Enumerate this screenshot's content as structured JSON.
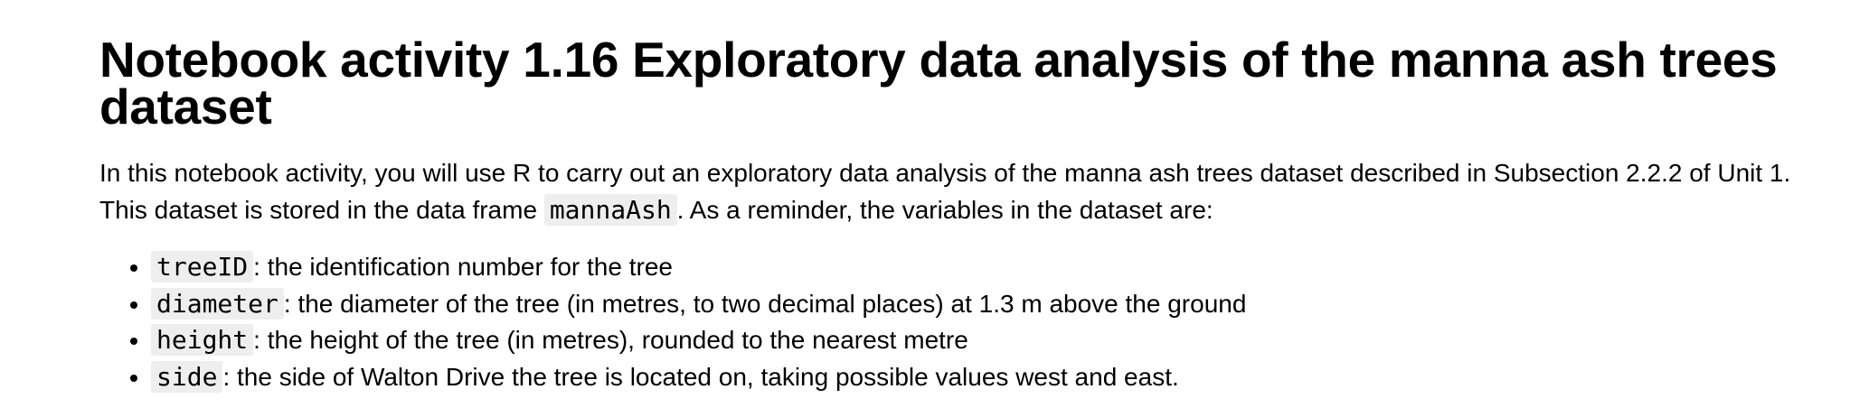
{
  "title": "Notebook activity 1.16 Exploratory data analysis of the manna ash trees dataset",
  "intro": {
    "before_code": "In this notebook activity, you will use R to carry out an exploratory data analysis of the manna ash trees dataset described in Subsection 2.2.2 of Unit 1. This dataset is stored in the data frame ",
    "code": "mannaAsh",
    "after_code": ". As a reminder, the variables in the dataset are:"
  },
  "variables": [
    {
      "code": "treeID",
      "description": ": the identification number for the tree"
    },
    {
      "code": "diameter",
      "description": ": the diameter of the tree (in metres, to two decimal places) at 1.3 m above the ground"
    },
    {
      "code": "height",
      "description": ": the height of the tree (in metres), rounded to the nearest metre"
    },
    {
      "code": "side",
      "description": ": the side of Walton Drive the tree is located on, taking possible values west and east."
    }
  ]
}
